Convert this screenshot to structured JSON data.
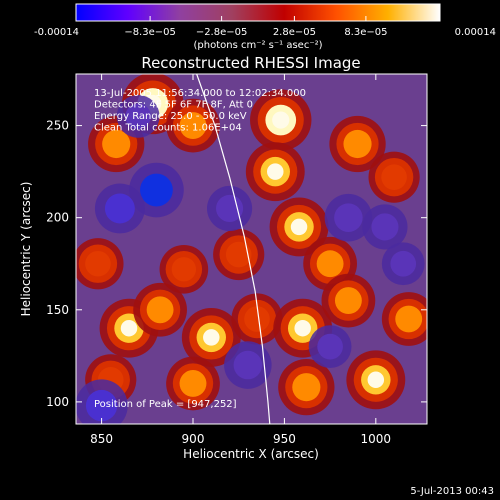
{
  "colorbar": {
    "tick_labels": [
      "-0.00014",
      "−8.3e−05",
      "−2.8e−05",
      "2.8e−05",
      "8.3e−05",
      "0.00014"
    ],
    "tick_values": [
      -0.00014,
      -8.3e-05,
      -2.8e-05,
      2.8e-05,
      8.3e-05,
      0.00014
    ],
    "unit_label": "(photons cm⁻² s⁻¹ asec⁻²)",
    "range": [
      -0.00014,
      0.00014
    ],
    "colormap": [
      "#0000ff",
      "#6000ff",
      "#9040a0",
      "#a04060",
      "#c00000",
      "#ff5000",
      "#ffb000",
      "#ffffff"
    ]
  },
  "chart_data": {
    "type": "heatmap",
    "title": "Reconstructed RHESSI Image",
    "xlabel": "Heliocentric X (arcsec)",
    "ylabel": "Heliocentric Y (arcsec)",
    "xlim": [
      836,
      1028
    ],
    "ylim": [
      88,
      278
    ],
    "x_ticks": [
      850,
      900,
      950,
      1000
    ],
    "y_ticks": [
      100,
      150,
      200,
      250
    ],
    "x_tick_labels": [
      "850",
      "900",
      "950",
      "1000"
    ],
    "y_tick_labels": [
      "100",
      "150",
      "200",
      "250"
    ],
    "info_lines": [
      "13-Jul-2005 11:56:34.000 to 12:02:34.000",
      "Detectors: 4F 5F 6F 7F 8F, Att 0",
      "Energy Range: 25.0 - 50.0 keV",
      "Clean    Total counts: 1.06E+04"
    ],
    "peak_label": "Position of Peak = [947,252]",
    "peak": [
      947,
      252
    ],
    "limb_curve": [
      [
        902,
        278
      ],
      [
        912,
        250
      ],
      [
        920,
        222
      ],
      [
        928,
        190
      ],
      [
        934,
        160
      ],
      [
        938,
        130
      ],
      [
        941,
        100
      ],
      [
        942,
        88
      ]
    ],
    "blobs": [
      {
        "x": 878,
        "y": 262,
        "v": 1.0
      },
      {
        "x": 858,
        "y": 240,
        "v": 0.8
      },
      {
        "x": 900,
        "y": 250,
        "v": 0.7
      },
      {
        "x": 948,
        "y": 253,
        "v": 1.0
      },
      {
        "x": 945,
        "y": 225,
        "v": 0.9
      },
      {
        "x": 990,
        "y": 240,
        "v": 0.8
      },
      {
        "x": 1010,
        "y": 222,
        "v": 0.6
      },
      {
        "x": 958,
        "y": 195,
        "v": 0.9
      },
      {
        "x": 975,
        "y": 175,
        "v": 0.7
      },
      {
        "x": 925,
        "y": 180,
        "v": 0.6
      },
      {
        "x": 895,
        "y": 172,
        "v": 0.5
      },
      {
        "x": 848,
        "y": 175,
        "v": 0.6
      },
      {
        "x": 865,
        "y": 140,
        "v": 0.9
      },
      {
        "x": 882,
        "y": 150,
        "v": 0.7
      },
      {
        "x": 910,
        "y": 135,
        "v": 0.9
      },
      {
        "x": 935,
        "y": 145,
        "v": 0.6
      },
      {
        "x": 960,
        "y": 140,
        "v": 0.9
      },
      {
        "x": 985,
        "y": 155,
        "v": 0.7
      },
      {
        "x": 1018,
        "y": 145,
        "v": 0.7
      },
      {
        "x": 1000,
        "y": 112,
        "v": 0.9
      },
      {
        "x": 962,
        "y": 108,
        "v": 0.8
      },
      {
        "x": 900,
        "y": 110,
        "v": 0.7
      },
      {
        "x": 855,
        "y": 112,
        "v": 0.6
      },
      {
        "x": 870,
        "y": 255,
        "v": -0.4
      },
      {
        "x": 880,
        "y": 215,
        "v": -0.9
      },
      {
        "x": 860,
        "y": 205,
        "v": -0.7
      },
      {
        "x": 920,
        "y": 205,
        "v": -0.5
      },
      {
        "x": 985,
        "y": 200,
        "v": -0.6
      },
      {
        "x": 1005,
        "y": 195,
        "v": -0.5
      },
      {
        "x": 930,
        "y": 120,
        "v": -0.6
      },
      {
        "x": 850,
        "y": 98,
        "v": -0.8
      },
      {
        "x": 975,
        "y": 130,
        "v": -0.4
      },
      {
        "x": 1015,
        "y": 175,
        "v": -0.4
      }
    ]
  },
  "footer": {
    "date": "5-Jul-2013 00:43"
  }
}
